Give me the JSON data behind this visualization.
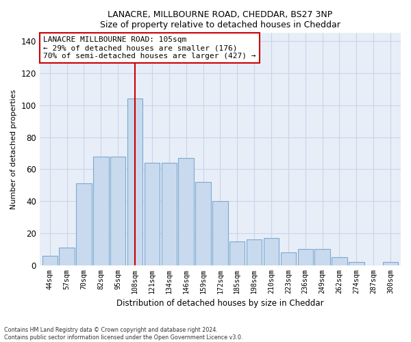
{
  "title1": "LANACRE, MILLBOURNE ROAD, CHEDDAR, BS27 3NP",
  "title2": "Size of property relative to detached houses in Cheddar",
  "xlabel": "Distribution of detached houses by size in Cheddar",
  "ylabel": "Number of detached properties",
  "categories": [
    "44sqm",
    "57sqm",
    "70sqm",
    "82sqm",
    "95sqm",
    "108sqm",
    "121sqm",
    "134sqm",
    "146sqm",
    "159sqm",
    "172sqm",
    "185sqm",
    "198sqm",
    "210sqm",
    "223sqm",
    "236sqm",
    "249sqm",
    "262sqm",
    "274sqm",
    "287sqm",
    "300sqm"
  ],
  "values": [
    6,
    11,
    51,
    68,
    68,
    104,
    64,
    64,
    67,
    52,
    40,
    15,
    16,
    17,
    8,
    10,
    10,
    5,
    2,
    0,
    2
  ],
  "bar_color": "#c9d9ee",
  "bar_edge_color": "#7aaad0",
  "vline_x": 5,
  "vline_color": "#cc0000",
  "annotation_text": "LANACRE MILLBOURNE ROAD: 105sqm\n← 29% of detached houses are smaller (176)\n70% of semi-detached houses are larger (427) →",
  "annotation_box_color": "#ffffff",
  "annotation_box_edge": "#cc0000",
  "ylim": [
    0,
    145
  ],
  "yticks": [
    0,
    20,
    40,
    60,
    80,
    100,
    120,
    140
  ],
  "footer1": "Contains HM Land Registry data © Crown copyright and database right 2024.",
  "footer2": "Contains public sector information licensed under the Open Government Licence v3.0.",
  "bg_color": "#ffffff",
  "plot_bg_color": "#e8eef8",
  "grid_color": "#c8d4e8"
}
